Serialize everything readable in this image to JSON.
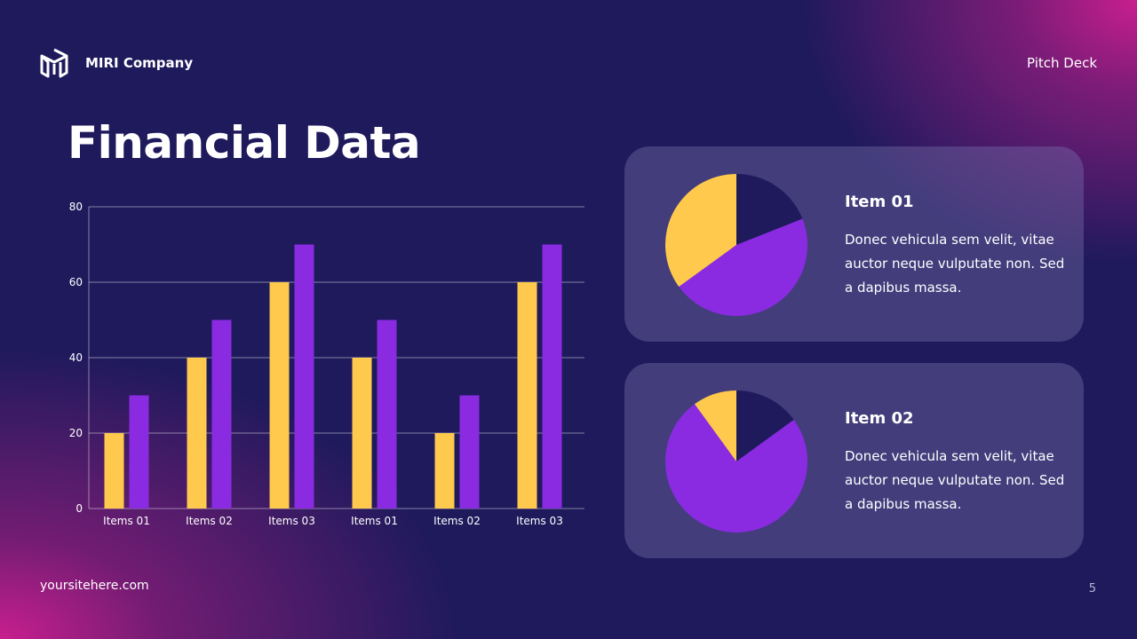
{
  "header": {
    "company": "MIRI Company",
    "deck_label": "Pitch Deck",
    "logo_icon": "hexagon-hw-logo"
  },
  "title": "Financial Data",
  "footer": {
    "site": "yoursitehere.com",
    "page": "5"
  },
  "colors": {
    "yellow": "#ffc94d",
    "purple": "#8a2be2",
    "navy": "#1e1a5c"
  },
  "chart_data": [
    {
      "type": "bar",
      "categories": [
        "Items 01",
        "Items 02",
        "Items 03",
        "Items 01",
        "Items 02",
        "Items 03"
      ],
      "series": [
        {
          "values": [
            20,
            40,
            60,
            40,
            20,
            60
          ],
          "color": "#ffc94d"
        },
        {
          "values": [
            30,
            50,
            70,
            50,
            30,
            70
          ],
          "color": "#8a2be2"
        }
      ],
      "ylim": [
        0,
        80
      ],
      "yticks": [
        "0",
        "20",
        "40",
        "60",
        "80"
      ],
      "grid": true
    },
    {
      "type": "pie",
      "title": "Item 01",
      "values": [
        19,
        46,
        35
      ],
      "colors": [
        "#1e1a5c",
        "#8a2be2",
        "#ffc94d"
      ]
    },
    {
      "type": "pie",
      "title": "Item 02",
      "values": [
        15,
        75,
        10
      ],
      "colors": [
        "#1e1a5c",
        "#8a2be2",
        "#ffc94d"
      ]
    }
  ],
  "cards": [
    {
      "title": "Item 01",
      "text": "Donec vehicula sem velit, vitae auctor neque vulputate non. Sed a dapibus massa."
    },
    {
      "title": "Item 02",
      "text": "Donec vehicula sem velit, vitae auctor neque vulputate non. Sed a dapibus massa."
    }
  ]
}
